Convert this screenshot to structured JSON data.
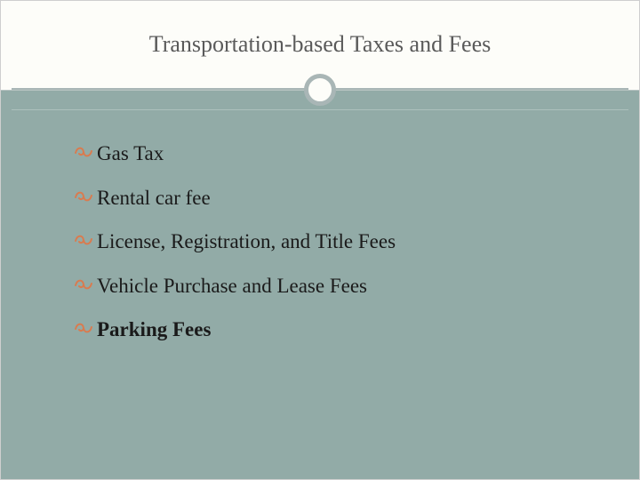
{
  "slide": {
    "title": "Transportation-based Taxes and Fees",
    "title_color": "#5a5a5a",
    "title_fontsize": 26,
    "background_top": "#fdfdf9",
    "background_body": "#92aba7",
    "accent_color": "#a9b6b6",
    "bullet_color": "#d97b4f",
    "bullet_glyph": "་",
    "text_color": "#1a1a1a",
    "item_fontsize": 23,
    "items": [
      {
        "text": "Gas Tax",
        "bold": false
      },
      {
        "text": "Rental car fee",
        "bold": false
      },
      {
        "text": "License, Registration, and Title Fees",
        "bold": false
      },
      {
        "text": "Vehicle Purchase and Lease Fees",
        "bold": false
      },
      {
        "text": "Parking Fees",
        "bold": true
      }
    ]
  }
}
